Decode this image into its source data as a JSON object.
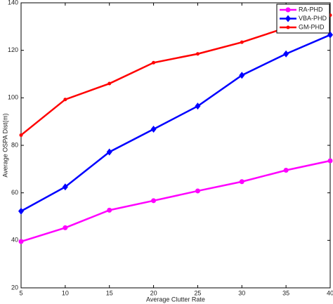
{
  "chart_data": {
    "type": "line",
    "x_label": "Average Clutter Rate",
    "y_label": "Average OSPA Dist(m)",
    "x": [
      5,
      10,
      15,
      20,
      25,
      30,
      35,
      40
    ],
    "series": [
      {
        "name": "RA-PHD",
        "color": "#ff00ff",
        "marker": "circle",
        "values": [
          39.5,
          45.3,
          52.7,
          56.7,
          60.8,
          64.7,
          69.5,
          73.5
        ]
      },
      {
        "name": "VBA-PHD",
        "color": "#0000ff",
        "marker": "diamond",
        "values": [
          52.3,
          62.5,
          77.2,
          86.8,
          96.5,
          109.5,
          118.5,
          126.5
        ]
      },
      {
        "name": "GM-PHD",
        "color": "#ff0000",
        "marker": "dot",
        "values": [
          84.3,
          99.3,
          106,
          114.8,
          118.5,
          123.4,
          129.5,
          134.8
        ]
      }
    ],
    "xlim": [
      5,
      40
    ],
    "xticks": [
      5,
      10,
      15,
      20,
      25,
      30,
      35,
      40
    ],
    "ylim": [
      20,
      140
    ],
    "yticks": [
      20,
      40,
      60,
      80,
      100,
      120,
      140
    ],
    "grid": false,
    "legend": "top-right"
  }
}
